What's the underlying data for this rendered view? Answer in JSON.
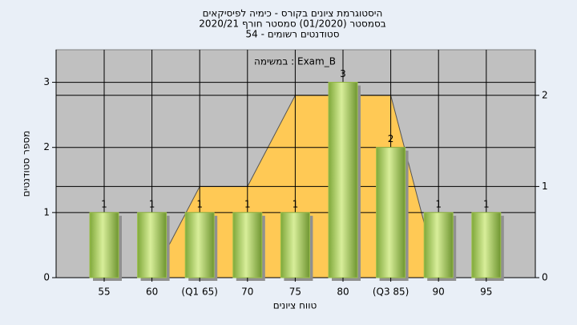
{
  "chart_data": {
    "type": "bar",
    "title": "היסטוגרמת ציונים בקורס - כימיה לפיסיקאים",
    "subtitle": "בסמסטר  (01/2020)  סמסטר חורף 2020/21",
    "subtitle2": "סטודנטים רשומים - 54",
    "annotation": "במשימה : Exam_B",
    "x_label": "טווח ציונים",
    "y_label": "מספר סטודנטים",
    "categories": [
      "55",
      "60",
      "(Q1 65)",
      "70",
      "75",
      "80",
      "(Q3 85)",
      "90",
      "95"
    ],
    "series": [
      {
        "type": "bar",
        "color": "#9bc04a",
        "values": [
          1,
          1,
          1,
          1,
          1,
          3,
          2,
          1,
          1
        ]
      },
      {
        "type": "area",
        "axis": "y2",
        "color": "#ffc955",
        "values": [
          null,
          0,
          1,
          1,
          2,
          2,
          2,
          0,
          null
        ]
      }
    ],
    "ylim": [
      0,
      3.5
    ],
    "yticks": [
      0,
      1,
      2,
      3
    ],
    "y2lim": [
      0,
      2.5
    ],
    "y2ticks": [
      0,
      1,
      2
    ],
    "grid": true
  }
}
